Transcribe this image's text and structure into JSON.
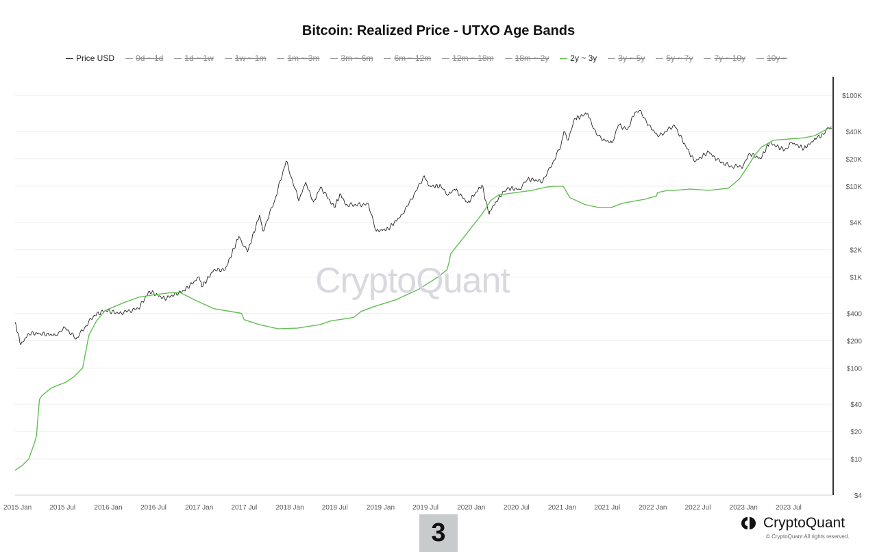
{
  "title": "Bitcoin: Realized Price - UTXO Age Bands",
  "legend": [
    {
      "label": "Price USD",
      "active": true,
      "color": "#333333"
    },
    {
      "label": "0d ~ 1d",
      "active": false
    },
    {
      "label": "1d ~ 1w",
      "active": false
    },
    {
      "label": "1w ~ 1m",
      "active": false
    },
    {
      "label": "1m ~ 3m",
      "active": false
    },
    {
      "label": "3m ~ 6m",
      "active": false
    },
    {
      "label": "6m ~ 12m",
      "active": false
    },
    {
      "label": "12m ~ 18m",
      "active": false
    },
    {
      "label": "18m ~ 2y",
      "active": false
    },
    {
      "label": "2y ~ 3y",
      "active": true,
      "color": "#5fbf4f"
    },
    {
      "label": "3y ~ 5y",
      "active": false
    },
    {
      "label": "5y ~ 7y",
      "active": false
    },
    {
      "label": "7y ~ 10y",
      "active": false
    },
    {
      "label": "10y ~",
      "active": false
    }
  ],
  "watermark": "CryptoQuant",
  "badge": "3",
  "brand": {
    "name": "CryptoQuant",
    "copyright": "© CryptoQuant All rights reserved."
  },
  "chart_data": {
    "type": "line",
    "y_scale": "log",
    "ylim": [
      4,
      160000
    ],
    "xlim": [
      "2014-12-22",
      "2023-12-22"
    ],
    "x_ticks": [
      {
        "label": "2015 Jan",
        "date": "2015-01-01"
      },
      {
        "label": "2015 Jul",
        "date": "2015-07-01"
      },
      {
        "label": "2016 Jan",
        "date": "2016-01-01"
      },
      {
        "label": "2016 Jul",
        "date": "2016-07-01"
      },
      {
        "label": "2017 Jan",
        "date": "2017-01-01"
      },
      {
        "label": "2017 Jul",
        "date": "2017-07-01"
      },
      {
        "label": "2018 Jan",
        "date": "2018-01-01"
      },
      {
        "label": "2018 Jul",
        "date": "2018-07-01"
      },
      {
        "label": "2019 Jan",
        "date": "2019-01-01"
      },
      {
        "label": "2019 Jul",
        "date": "2019-07-01"
      },
      {
        "label": "2020 Jan",
        "date": "2020-01-01"
      },
      {
        "label": "2020 Jul",
        "date": "2020-07-01"
      },
      {
        "label": "2021 Jan",
        "date": "2021-01-01"
      },
      {
        "label": "2021 Jul",
        "date": "2021-07-01"
      },
      {
        "label": "2022 Jan",
        "date": "2022-01-01"
      },
      {
        "label": "2022 Jul",
        "date": "2022-07-01"
      },
      {
        "label": "2023 Jan",
        "date": "2023-01-01"
      },
      {
        "label": "2023 Jul",
        "date": "2023-07-01"
      }
    ],
    "y_ticks": [
      {
        "label": "$100K",
        "value": 100000
      },
      {
        "label": "$40K",
        "value": 40000
      },
      {
        "label": "$20K",
        "value": 20000
      },
      {
        "label": "$10K",
        "value": 10000
      },
      {
        "label": "$4K",
        "value": 4000
      },
      {
        "label": "$2K",
        "value": 2000
      },
      {
        "label": "$1K",
        "value": 1000
      },
      {
        "label": "$400",
        "value": 400
      },
      {
        "label": "$200",
        "value": 200
      },
      {
        "label": "$100",
        "value": 100
      },
      {
        "label": "$40",
        "value": 40
      },
      {
        "label": "$20",
        "value": 20
      },
      {
        "label": "$10",
        "value": 10
      },
      {
        "label": "$4",
        "value": 4
      }
    ],
    "series": [
      {
        "name": "Price USD",
        "color": "#222222",
        "points": [
          [
            "2014-12-22",
            320
          ],
          [
            "2015-01-14",
            180
          ],
          [
            "2015-02-15",
            240
          ],
          [
            "2015-04-01",
            240
          ],
          [
            "2015-06-01",
            230
          ],
          [
            "2015-07-10",
            280
          ],
          [
            "2015-08-25",
            210
          ],
          [
            "2015-11-05",
            380
          ],
          [
            "2015-12-20",
            430
          ],
          [
            "2016-02-15",
            400
          ],
          [
            "2016-05-01",
            450
          ],
          [
            "2016-06-15",
            700
          ],
          [
            "2016-08-15",
            580
          ],
          [
            "2016-11-01",
            710
          ],
          [
            "2017-01-01",
            1000
          ],
          [
            "2017-01-12",
            780
          ],
          [
            "2017-03-01",
            1200
          ],
          [
            "2017-04-15",
            1200
          ],
          [
            "2017-06-10",
            2800
          ],
          [
            "2017-07-15",
            1900
          ],
          [
            "2017-09-01",
            4800
          ],
          [
            "2017-09-15",
            3200
          ],
          [
            "2017-11-01",
            7000
          ],
          [
            "2017-12-17",
            19000
          ],
          [
            "2018-02-06",
            6900
          ],
          [
            "2018-03-05",
            11000
          ],
          [
            "2018-04-06",
            6700
          ],
          [
            "2018-05-05",
            9800
          ],
          [
            "2018-06-28",
            5900
          ],
          [
            "2018-07-25",
            8200
          ],
          [
            "2018-08-14",
            6200
          ],
          [
            "2018-11-14",
            6300
          ],
          [
            "2018-12-15",
            3200
          ],
          [
            "2019-02-01",
            3400
          ],
          [
            "2019-04-02",
            5000
          ],
          [
            "2019-05-15",
            8000
          ],
          [
            "2019-06-26",
            13000
          ],
          [
            "2019-07-15",
            10000
          ],
          [
            "2019-09-01",
            10000
          ],
          [
            "2019-10-01",
            8000
          ],
          [
            "2019-10-26",
            9300
          ],
          [
            "2019-12-18",
            6600
          ],
          [
            "2020-02-13",
            10300
          ],
          [
            "2020-03-12",
            5000
          ],
          [
            "2020-03-15",
            5300
          ],
          [
            "2020-05-10",
            8700
          ],
          [
            "2020-06-01",
            9500
          ],
          [
            "2020-07-15",
            9200
          ],
          [
            "2020-08-15",
            12000
          ],
          [
            "2020-10-15",
            11300
          ],
          [
            "2020-11-15",
            16000
          ],
          [
            "2020-12-27",
            28000
          ],
          [
            "2021-01-08",
            40000
          ],
          [
            "2021-01-25",
            32000
          ],
          [
            "2021-02-20",
            56000
          ],
          [
            "2021-03-15",
            58000
          ],
          [
            "2021-04-14",
            63000
          ],
          [
            "2021-05-19",
            37000
          ],
          [
            "2021-06-22",
            32000
          ],
          [
            "2021-07-20",
            30000
          ],
          [
            "2021-08-15",
            47000
          ],
          [
            "2021-09-21",
            42000
          ],
          [
            "2021-10-20",
            64000
          ],
          [
            "2021-11-10",
            68000
          ],
          [
            "2021-12-15",
            47000
          ],
          [
            "2022-01-24",
            35000
          ],
          [
            "2022-03-28",
            47000
          ],
          [
            "2022-05-12",
            28000
          ],
          [
            "2022-06-18",
            18500
          ],
          [
            "2022-08-14",
            24000
          ],
          [
            "2022-09-15",
            19500
          ],
          [
            "2022-11-09",
            16500
          ],
          [
            "2022-12-30",
            16500
          ],
          [
            "2023-01-25",
            23000
          ],
          [
            "2023-03-10",
            20000
          ],
          [
            "2023-04-15",
            30000
          ],
          [
            "2023-06-15",
            25000
          ],
          [
            "2023-07-15",
            30000
          ],
          [
            "2023-09-01",
            26000
          ],
          [
            "2023-10-23",
            34000
          ],
          [
            "2023-11-20",
            37000
          ],
          [
            "2023-12-08",
            44000
          ],
          [
            "2023-12-22",
            43000
          ]
        ]
      },
      {
        "name": "2y ~ 3y",
        "color": "#5fbf4f",
        "points": [
          [
            "2014-12-22",
            7.5
          ],
          [
            "2015-01-20",
            8.5
          ],
          [
            "2015-02-15",
            10
          ],
          [
            "2015-03-10",
            15
          ],
          [
            "2015-03-18",
            18
          ],
          [
            "2015-03-30",
            45
          ],
          [
            "2015-04-10",
            50
          ],
          [
            "2015-05-15",
            60
          ],
          [
            "2015-06-15",
            65
          ],
          [
            "2015-07-15",
            70
          ],
          [
            "2015-08-15",
            80
          ],
          [
            "2015-09-20",
            100
          ],
          [
            "2015-10-15",
            230
          ],
          [
            "2015-11-15",
            330
          ],
          [
            "2015-12-20",
            430
          ],
          [
            "2016-03-01",
            520
          ],
          [
            "2016-05-01",
            600
          ],
          [
            "2016-07-01",
            640
          ],
          [
            "2016-09-01",
            670
          ],
          [
            "2016-10-15",
            680
          ],
          [
            "2016-12-15",
            560
          ],
          [
            "2017-03-01",
            450
          ],
          [
            "2017-06-20",
            400
          ],
          [
            "2017-07-01",
            340
          ],
          [
            "2017-09-01",
            300
          ],
          [
            "2017-11-15",
            270
          ],
          [
            "2018-02-01",
            275
          ],
          [
            "2018-05-01",
            300
          ],
          [
            "2018-06-15",
            330
          ],
          [
            "2018-09-15",
            360
          ],
          [
            "2018-10-15",
            420
          ],
          [
            "2018-12-01",
            470
          ],
          [
            "2019-03-01",
            560
          ],
          [
            "2019-06-01",
            730
          ],
          [
            "2019-08-20",
            1000
          ],
          [
            "2019-09-25",
            1200
          ],
          [
            "2019-10-05",
            1500
          ],
          [
            "2019-10-10",
            1800
          ],
          [
            "2019-11-15",
            2400
          ],
          [
            "2020-01-01",
            3500
          ],
          [
            "2020-02-15",
            5000
          ],
          [
            "2020-03-20",
            7000
          ],
          [
            "2020-04-20",
            8000
          ],
          [
            "2020-06-01",
            8300
          ],
          [
            "2020-09-01",
            9000
          ],
          [
            "2020-11-01",
            9800
          ],
          [
            "2020-12-01",
            10000
          ],
          [
            "2021-01-05",
            10000
          ],
          [
            "2021-02-01",
            7500
          ],
          [
            "2021-04-01",
            6300
          ],
          [
            "2021-06-01",
            5800
          ],
          [
            "2021-07-15",
            5800
          ],
          [
            "2021-09-01",
            6500
          ],
          [
            "2021-12-01",
            7200
          ],
          [
            "2022-01-15",
            7800
          ],
          [
            "2022-01-20",
            8500
          ],
          [
            "2022-03-01",
            9000
          ],
          [
            "2022-04-01",
            9000
          ],
          [
            "2022-06-01",
            9300
          ],
          [
            "2022-08-15",
            9000
          ],
          [
            "2022-11-01",
            9500
          ],
          [
            "2022-12-15",
            12000
          ],
          [
            "2023-01-15",
            16000
          ],
          [
            "2023-02-15",
            22000
          ],
          [
            "2023-03-15",
            27000
          ],
          [
            "2023-05-01",
            32000
          ],
          [
            "2023-07-01",
            33000
          ],
          [
            "2023-09-01",
            34000
          ],
          [
            "2023-10-15",
            36000
          ],
          [
            "2023-11-15",
            40000
          ],
          [
            "2023-12-22",
            45000
          ]
        ]
      }
    ]
  }
}
